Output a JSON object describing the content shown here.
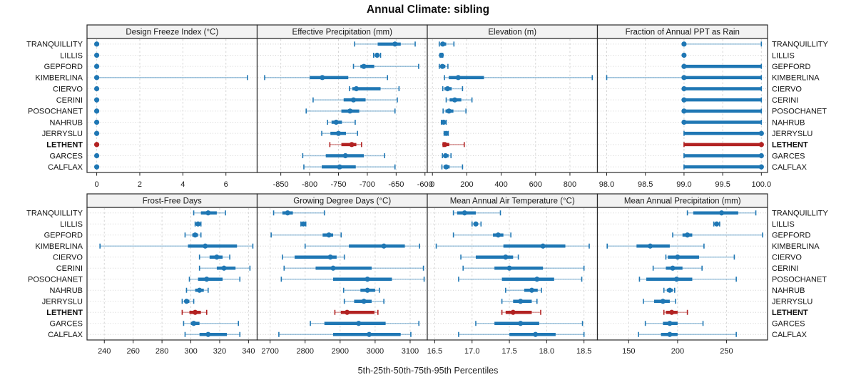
{
  "chart_data": {
    "type": "dot-whisker-trellis",
    "title": "Annual Climate: sibling",
    "caption": "5th-25th-50th-75th-95th Percentiles",
    "legend_note": "values per site are [5th,25th,50th,75th,95th] percentiles",
    "sites": [
      "TRANQUILLITY",
      "LILLIS",
      "GEPFORD",
      "KIMBERLINA",
      "CIERVO",
      "CERINI",
      "POSOCHANET",
      "NAHRUB",
      "JERRYSLU",
      "LETHENT",
      "GARCES",
      "CALFLAX"
    ],
    "highlight_site": "LETHENT",
    "colors": {
      "normal": "#1f77b4",
      "highlight": "#b22222"
    },
    "panels": [
      {
        "label": "Design Freeze Index (°C)",
        "range": [
          -0.45,
          7.45
        ],
        "ticks": [
          0,
          2,
          4,
          6
        ],
        "tick_labels": [
          "0",
          "2",
          "4",
          "6"
        ],
        "values": [
          [
            0,
            0,
            0,
            0,
            0
          ],
          [
            0,
            0,
            0,
            0,
            0
          ],
          [
            0,
            0,
            0,
            0,
            0
          ],
          [
            0,
            0,
            0,
            0,
            7
          ],
          [
            0,
            0,
            0,
            0,
            0
          ],
          [
            0,
            0,
            0,
            0,
            0
          ],
          [
            0,
            0,
            0,
            0,
            0
          ],
          [
            0,
            0,
            0,
            0,
            0
          ],
          [
            0,
            0,
            0,
            0,
            0
          ],
          [
            0,
            0,
            0,
            0,
            0
          ],
          [
            0,
            0,
            0,
            0,
            0
          ],
          [
            0,
            0,
            0,
            0,
            0
          ]
        ]
      },
      {
        "label": "Effective Precipitation (mm)",
        "range": [
          -891,
          -596
        ],
        "ticks": [
          -850,
          -800,
          -750,
          -700,
          -650,
          -600
        ],
        "tick_labels": [
          "-850",
          "-800",
          "-750",
          "-700",
          "-650",
          "-600"
        ],
        "values": [
          [
            -722,
            -682,
            -652,
            -642,
            -617
          ],
          [
            -689,
            -686,
            -683,
            -681,
            -677
          ],
          [
            -724,
            -712,
            -706,
            -688,
            -611
          ],
          [
            -878,
            -800,
            -778,
            -733,
            -665
          ],
          [
            -731,
            -726,
            -719,
            -677,
            -645
          ],
          [
            -794,
            -741,
            -724,
            -703,
            -648
          ],
          [
            -806,
            -745,
            -730,
            -714,
            -652
          ],
          [
            -769,
            -762,
            -754,
            -744,
            -721
          ],
          [
            -779,
            -764,
            -750,
            -737,
            -717
          ],
          [
            -765,
            -745,
            -727,
            -719,
            -710
          ],
          [
            -812,
            -772,
            -738,
            -706,
            -670
          ],
          [
            -810,
            -779,
            -748,
            -720,
            -652
          ]
        ]
      },
      {
        "label": "Elevation (m)",
        "range": [
          -30,
          960
        ],
        "ticks": [
          0,
          200,
          400,
          600,
          800
        ],
        "tick_labels": [
          "0",
          "200",
          "400",
          "600",
          "800"
        ],
        "values": [
          [
            40,
            48,
            60,
            80,
            125
          ],
          [
            45,
            48,
            52,
            56,
            60
          ],
          [
            40,
            48,
            58,
            75,
            90
          ],
          [
            70,
            95,
            150,
            300,
            930
          ],
          [
            60,
            70,
            88,
            112,
            175
          ],
          [
            80,
            100,
            130,
            168,
            230
          ],
          [
            62,
            76,
            96,
            122,
            195
          ],
          [
            52,
            58,
            65,
            72,
            80
          ],
          [
            68,
            74,
            80,
            86,
            92
          ],
          [
            62,
            66,
            72,
            98,
            185
          ],
          [
            58,
            66,
            76,
            94,
            108
          ],
          [
            55,
            65,
            80,
            100,
            175
          ]
        ]
      },
      {
        "label": "Fraction of Annual PPT as Rain",
        "range": [
          97.88,
          100.08
        ],
        "ticks": [
          98.0,
          98.5,
          99.0,
          99.5,
          100.0
        ],
        "tick_labels": [
          "98.0",
          "98.5",
          "99.0",
          "99.5",
          "100.0"
        ],
        "values": [
          [
            99,
            99,
            99,
            99,
            100
          ],
          [
            99,
            99,
            99,
            99,
            99
          ],
          [
            99,
            99,
            99,
            100,
            100
          ],
          [
            98,
            99,
            99,
            100,
            100
          ],
          [
            99,
            99,
            99,
            100,
            100
          ],
          [
            99,
            99,
            99,
            100,
            100
          ],
          [
            99,
            99,
            99,
            100,
            100
          ],
          [
            99,
            99,
            99,
            100,
            100
          ],
          [
            99,
            99,
            100,
            100,
            100
          ],
          [
            99,
            99,
            100,
            100,
            100
          ],
          [
            99,
            99,
            100,
            100,
            100
          ],
          [
            99,
            99,
            100,
            100,
            100
          ]
        ]
      },
      {
        "label": "Frost-Free Days",
        "range": [
          228,
          346
        ],
        "ticks": [
          240,
          260,
          280,
          300,
          320,
          340
        ],
        "tick_labels": [
          "240",
          "260",
          "280",
          "300",
          "320",
          "340"
        ],
        "values": [
          [
            302,
            307,
            312,
            318,
            324
          ],
          [
            303,
            304,
            305,
            306,
            307
          ],
          [
            296,
            301,
            303,
            305,
            307
          ],
          [
            237,
            298,
            310,
            332,
            343
          ],
          [
            306,
            313,
            318,
            322,
            327
          ],
          [
            306,
            318,
            323,
            331,
            341
          ],
          [
            299,
            305,
            311,
            322,
            334
          ],
          [
            297,
            303,
            306,
            309,
            312
          ],
          [
            294,
            296,
            297,
            299,
            302
          ],
          [
            294,
            299,
            303,
            307,
            311
          ],
          [
            295,
            300,
            302,
            306,
            333
          ],
          [
            296,
            306,
            312,
            325,
            334
          ]
        ]
      },
      {
        "label": "Growing Degree Days (°C)",
        "range": [
          2663,
          3149
        ],
        "ticks": [
          2700,
          2800,
          2900,
          3000,
          3100
        ],
        "tick_labels": [
          "2700",
          "2800",
          "2900",
          "3000",
          "3100"
        ],
        "values": [
          [
            2710,
            2735,
            2750,
            2765,
            2855
          ],
          [
            2788,
            2792,
            2795,
            2798,
            2802
          ],
          [
            2703,
            2850,
            2868,
            2880,
            2903
          ],
          [
            2800,
            2925,
            3025,
            3085,
            3127
          ],
          [
            2735,
            2770,
            2872,
            2890,
            2912
          ],
          [
            2740,
            2830,
            2880,
            2990,
            3138
          ],
          [
            2732,
            2880,
            2978,
            3048,
            3140
          ],
          [
            2910,
            2958,
            2978,
            3000,
            3012
          ],
          [
            2912,
            2940,
            2968,
            2990,
            3025
          ],
          [
            2885,
            2902,
            2920,
            2998,
            3008
          ],
          [
            2815,
            2855,
            2953,
            3030,
            3125
          ],
          [
            2725,
            2880,
            2983,
            3073,
            3102
          ]
        ]
      },
      {
        "label": "Mean Annual Air Temperature (°C)",
        "range": [
          16.4,
          18.68
        ],
        "ticks": [
          16.5,
          17.0,
          17.5,
          18.0,
          18.5
        ],
        "tick_labels": [
          "16.5",
          "17.0",
          "17.5",
          "18.0",
          "18.5"
        ],
        "values": [
          [
            16.75,
            16.8,
            16.9,
            17.05,
            17.38
          ],
          [
            17.0,
            17.03,
            17.05,
            17.08,
            17.12
          ],
          [
            16.75,
            17.28,
            17.35,
            17.42,
            17.52
          ],
          [
            16.52,
            17.42,
            17.95,
            18.25,
            18.57
          ],
          [
            16.85,
            17.05,
            17.45,
            17.55,
            17.62
          ],
          [
            16.88,
            17.3,
            17.5,
            17.95,
            18.5
          ],
          [
            16.82,
            17.4,
            17.87,
            18.1,
            18.47
          ],
          [
            17.45,
            17.7,
            17.8,
            17.88,
            17.93
          ],
          [
            17.4,
            17.55,
            17.65,
            17.8,
            17.87
          ],
          [
            17.4,
            17.45,
            17.55,
            17.8,
            17.92
          ],
          [
            17.05,
            17.3,
            17.65,
            17.9,
            18.48
          ],
          [
            16.82,
            17.5,
            17.85,
            18.12,
            18.5
          ]
        ]
      },
      {
        "label": "Mean Annual Precipitation (mm)",
        "range": [
          118,
          292
        ],
        "ticks": [
          150,
          200,
          250
        ],
        "tick_labels": [
          "150",
          "200",
          "250"
        ],
        "values": [
          [
            210,
            216,
            245,
            262,
            280
          ],
          [
            237,
            239,
            240,
            241,
            243
          ],
          [
            195,
            205,
            210,
            215,
            287
          ],
          [
            128,
            158,
            172,
            192,
            227
          ],
          [
            188,
            190,
            200,
            222,
            258
          ],
          [
            175,
            188,
            195,
            205,
            225
          ],
          [
            161,
            168,
            199,
            215,
            260
          ],
          [
            186,
            189,
            192,
            195,
            197
          ],
          [
            165,
            176,
            185,
            192,
            198
          ],
          [
            186,
            188,
            194,
            200,
            210
          ],
          [
            167,
            185,
            192,
            200,
            226
          ],
          [
            160,
            183,
            192,
            200,
            260
          ]
        ]
      }
    ],
    "layout_hints": {
      "grid": "dashed vertical at ticks, dotted horizontal per site row",
      "panel_grid": "2 rows x 4 columns, shared site axis labeled on both sides",
      "header_bg": "#f2f2f2",
      "border_color": "#2a2a2a"
    }
  }
}
